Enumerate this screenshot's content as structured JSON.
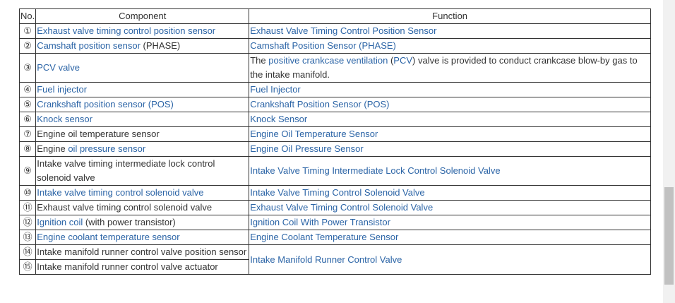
{
  "table": {
    "header": [
      "No.",
      "Component",
      "Function"
    ],
    "rows": [
      {
        "no": "①",
        "component": [
          {
            "text": "Exhaust valve timing control position sensor",
            "link": true
          }
        ],
        "function": [
          {
            "text": "Exhaust Valve Timing Control Position Sensor",
            "link": true
          }
        ]
      },
      {
        "no": "②",
        "component": [
          {
            "text": "Camshaft position sensor",
            "link": true
          },
          {
            "text": " (PHASE)",
            "link": false
          }
        ],
        "function": [
          {
            "text": "Camshaft Position Sensor (PHASE)",
            "link": true
          }
        ]
      },
      {
        "no": "③",
        "component": [
          {
            "text": "PCV valve",
            "link": true
          }
        ],
        "function": [
          {
            "text": "The ",
            "link": false
          },
          {
            "text": "positive crankcase ventilation",
            "link": true
          },
          {
            "text": " (",
            "link": false
          },
          {
            "text": "PCV",
            "link": true
          },
          {
            "text": ") valve is provided to conduct crankcase blow-by gas to the intake manifold.",
            "link": false
          }
        ]
      },
      {
        "no": "④",
        "component": [
          {
            "text": "Fuel injector",
            "link": true
          }
        ],
        "function": [
          {
            "text": "Fuel Injector",
            "link": true
          }
        ]
      },
      {
        "no": "⑤",
        "component": [
          {
            "text": "Crankshaft position sensor (POS)",
            "link": true
          }
        ],
        "function": [
          {
            "text": "Crankshaft Position Sensor (POS)",
            "link": true
          }
        ]
      },
      {
        "no": "⑥",
        "component": [
          {
            "text": "Knock sensor",
            "link": true
          }
        ],
        "function": [
          {
            "text": "Knock Sensor",
            "link": true
          }
        ]
      },
      {
        "no": "⑦",
        "component": [
          {
            "text": "Engine oil temperature sensor",
            "link": false
          }
        ],
        "function": [
          {
            "text": "Engine Oil Temperature Sensor",
            "link": true
          }
        ]
      },
      {
        "no": "⑧",
        "component": [
          {
            "text": "Engine ",
            "link": false
          },
          {
            "text": "oil pressure sensor",
            "link": true
          }
        ],
        "function": [
          {
            "text": "Engine Oil Pressure Sensor",
            "link": true
          }
        ]
      },
      {
        "no": "⑨",
        "component": [
          {
            "text": "Intake valve timing intermediate lock control solenoid valve",
            "link": false
          }
        ],
        "function": [
          {
            "text": "Intake Valve Timing Intermediate Lock Control Solenoid Valve",
            "link": true
          }
        ]
      },
      {
        "no": "⑩",
        "component": [
          {
            "text": "Intake valve timing control solenoid valve",
            "link": true
          }
        ],
        "function": [
          {
            "text": "Intake Valve Timing Control Solenoid Valve",
            "link": true
          }
        ]
      },
      {
        "no": "⑪",
        "component": [
          {
            "text": "Exhaust valve timing control solenoid valve",
            "link": false
          }
        ],
        "function": [
          {
            "text": "Exhaust Valve Timing Control Solenoid Valve",
            "link": true
          }
        ]
      },
      {
        "no": "⑫",
        "component": [
          {
            "text": "Ignition coil",
            "link": true
          },
          {
            "text": " (with power transistor)",
            "link": false
          }
        ],
        "function": [
          {
            "text": "Ignition Coil With Power Transistor",
            "link": true
          }
        ]
      },
      {
        "no": "⑬",
        "component": [
          {
            "text": "Engine coolant temperature sensor",
            "link": true
          }
        ],
        "function": [
          {
            "text": "Engine Coolant Temperature Sensor",
            "link": true
          }
        ]
      },
      {
        "no": "⑭",
        "component": [
          {
            "text": "Intake manifold runner control valve position sensor",
            "link": false
          }
        ],
        "function": [
          {
            "text": "Intake Manifold Runner Control Valve",
            "link": true
          }
        ]
      },
      {
        "no": "⑮",
        "component": [
          {
            "text": "Intake manifold runner control valve actuator",
            "link": false
          }
        ]
      }
    ]
  }
}
